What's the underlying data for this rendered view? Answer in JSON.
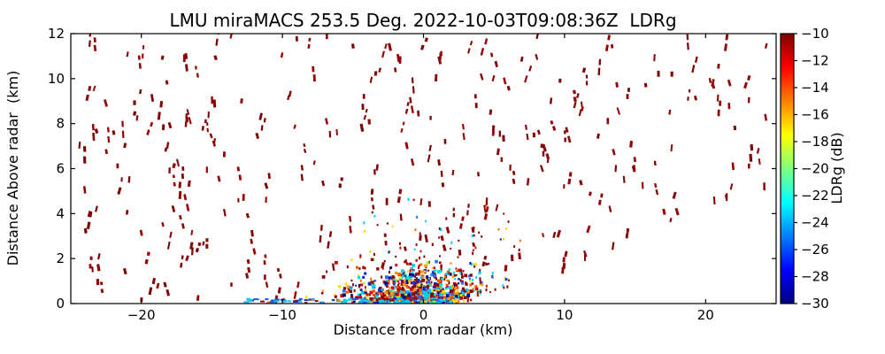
{
  "chart_data": {
    "type": "scatter",
    "title": "LMU miraMACS 253.5 Deg. 2022-10-03T09:08:36Z  LDRg",
    "xlabel": "Distance from radar (km)",
    "ylabel": "Distance Above radar  (km)",
    "xlim": [
      -25,
      25
    ],
    "ylim": [
      0,
      12
    ],
    "xticks": [
      -20,
      -10,
      0,
      10,
      20
    ],
    "xtick_labels": [
      "−20",
      "−10",
      "0",
      "10",
      "20"
    ],
    "yticks": [
      0,
      2,
      4,
      6,
      8,
      10,
      12
    ],
    "ytick_labels": [
      "0",
      "2",
      "4",
      "6",
      "8",
      "10",
      "12"
    ],
    "grid": false,
    "background": "#ffffff",
    "colorbar": {
      "label": "LDRg (dB)",
      "ticks": [
        -10,
        -12,
        -14,
        -16,
        -18,
        -20,
        -22,
        -24,
        -26,
        -28,
        -30
      ],
      "tick_labels": [
        "−10",
        "−12",
        "−14",
        "−16",
        "−18",
        "−20",
        "−22",
        "−24",
        "−26",
        "−28",
        "−30"
      ],
      "vmin": -30,
      "vmax": -10,
      "colormap": "jet",
      "gradient_stops_top_to_bottom": [
        {
          "pos": 0.0,
          "color": "#800000"
        },
        {
          "pos": 0.125,
          "color": "#ff0000"
        },
        {
          "pos": 0.375,
          "color": "#ffff00"
        },
        {
          "pos": 0.625,
          "color": "#00ffff"
        },
        {
          "pos": 0.875,
          "color": "#0000ff"
        },
        {
          "pos": 1.0,
          "color": "#000080"
        }
      ]
    },
    "seed": 7,
    "populations": [
      {
        "name": "sparse-streaks-left",
        "description": "dark red (~-10 dB) slanted echo streaks, left half of scan",
        "marker": "streak",
        "count": 175,
        "x_range": [
          -24.4,
          0.3
        ],
        "y_range": [
          0.15,
          11.95
        ],
        "pair_prob": 0.35,
        "colors_weighted": [
          [
            "#7f0000",
            0.4
          ],
          [
            "#8b0a0a",
            0.4
          ],
          [
            "#970000",
            0.2
          ]
        ]
      },
      {
        "name": "sparse-streaks-right",
        "description": "dark red slanted echo streaks, right half; empty wedge near ground at far range",
        "marker": "streak",
        "count": 150,
        "x_range": [
          0.3,
          24.3
        ],
        "y_range": [
          0.15,
          11.95
        ],
        "pair_prob": 0.35,
        "wedge": {
          "x0": 5,
          "base": 0.3,
          "slope": 0.24
        },
        "colors_weighted": [
          [
            "#7f0000",
            0.4
          ],
          [
            "#8b0a0a",
            0.4
          ],
          [
            "#970000",
            0.2
          ]
        ]
      },
      {
        "name": "mid-speckle",
        "description": "small dots fanning up to ~5 km above the near-radar cluster, mostly -10 dB red with few cool points",
        "marker": "dot",
        "count": 270,
        "x_gauss": {
          "mean": 1.2,
          "sd": 3.4
        },
        "y_exp": {
          "scale": 1.3,
          "min": 0.1,
          "max": 4.9
        },
        "wedge": {
          "x0": 3,
          "base": 0.05,
          "slope": 0.2
        },
        "colors_weighted": [
          [
            "#8b0000",
            0.6
          ],
          [
            "#c81e00",
            0.1
          ],
          [
            "#ff7000",
            0.07
          ],
          [
            "#ffd300",
            0.05
          ],
          [
            "#00d5ff",
            0.08
          ],
          [
            "#2070ff",
            0.06
          ],
          [
            "#001f9e",
            0.04
          ]
        ]
      },
      {
        "name": "cluster-core",
        "description": "dense multicolour (full -10..-30 dB LDR range) boundary-layer cluster at x -6..+4 km, below ~1.8 km",
        "marker": "square",
        "count": 650,
        "x_gauss": {
          "mean": -0.4,
          "sd": 2.5
        },
        "y_exp": {
          "scale": 0.5,
          "min": 0.03,
          "max": 2.0
        },
        "wedge": {
          "x0": 2.5,
          "base": 0.05,
          "slope": 0.3
        },
        "colors_weighted": [
          [
            "#8b0000",
            0.2
          ],
          [
            "#d40000",
            0.12
          ],
          [
            "#ff5500",
            0.1
          ],
          [
            "#ff9900",
            0.09
          ],
          [
            "#ffe000",
            0.08
          ],
          [
            "#9cff3a",
            0.03
          ],
          [
            "#00e0d0",
            0.07
          ],
          [
            "#00c8ff",
            0.1
          ],
          [
            "#2d6bff",
            0.09
          ],
          [
            "#0a2fd0",
            0.07
          ],
          [
            "#001080",
            0.05
          ]
        ]
      },
      {
        "name": "ground-returns",
        "description": "cyan/blue low-LDR dashes hugging y=0 from -12.8 to +2 km",
        "marker": "dash",
        "count": 80,
        "x_range": [
          -12.8,
          2.0
        ],
        "y_range": [
          0.03,
          0.22
        ],
        "colors_weighted": [
          [
            "#00cfff",
            0.4
          ],
          [
            "#30a8ff",
            0.15
          ],
          [
            "#2255ee",
            0.15
          ],
          [
            "#0a2fd0",
            0.08
          ],
          [
            "#8b0000",
            0.17
          ],
          [
            "#ff7000",
            0.05
          ]
        ]
      }
    ]
  }
}
